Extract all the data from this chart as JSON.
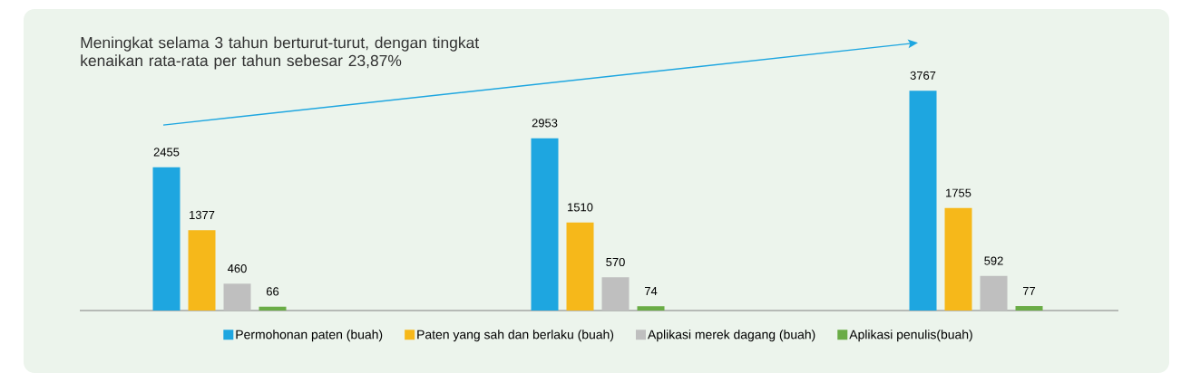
{
  "chart_data": {
    "type": "bar",
    "categories": [
      null,
      null,
      null
    ],
    "series": [
      {
        "name": "Permohonan paten (buah)",
        "color": "#1ea6e0",
        "values": [
          2455,
          2953,
          3767
        ]
      },
      {
        "name": "Paten yang sah dan berlaku (buah)",
        "color": "#f6b81a",
        "values": [
          1377,
          1510,
          1755
        ]
      },
      {
        "name": "Aplikasi merek dagang (buah)",
        "color": "#bfbfbf",
        "values": [
          460,
          570,
          592
        ]
      },
      {
        "name": "Aplikasi penulis(buah)",
        "color": "#6aac46",
        "values": [
          66,
          74,
          77
        ]
      }
    ],
    "annotations": [
      "Meningkat selama 3 tahun berturut-turut, dengan tingkat kenaikan rata-rata per tahun sebesar 23,87%"
    ],
    "data_labels": true,
    "legend": "bottom"
  }
}
